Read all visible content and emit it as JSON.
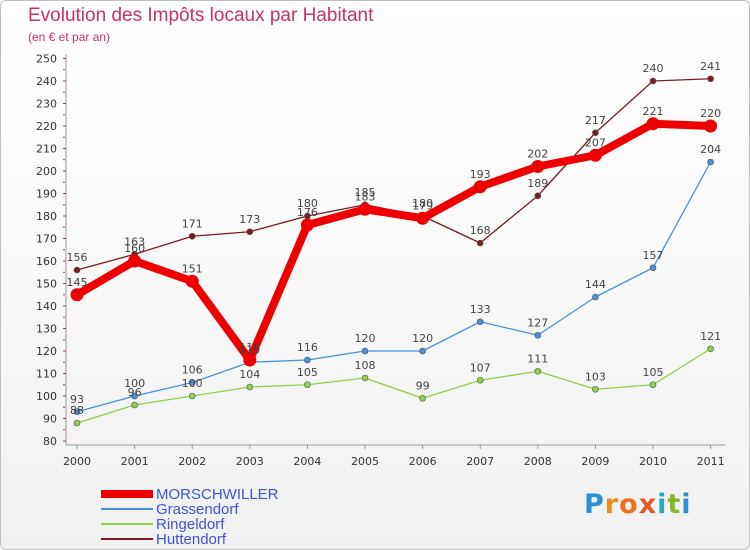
{
  "title": "Evolution des Impôts locaux par Habitant",
  "subtitle": "(en € et par an)",
  "brand": "Proxiti",
  "chart_data": {
    "type": "line",
    "title": "Evolution des Impôts locaux par Habitant",
    "subtitle": "(en € et par an)",
    "xlabel": "",
    "ylabel": "",
    "x": [
      2000,
      2001,
      2002,
      2003,
      2004,
      2005,
      2006,
      2007,
      2008,
      2009,
      2010,
      2011
    ],
    "ylim": [
      80,
      250
    ],
    "yticks": [
      80,
      90,
      100,
      110,
      120,
      130,
      140,
      150,
      160,
      170,
      180,
      190,
      200,
      210,
      220,
      230,
      240,
      250
    ],
    "grid": false,
    "legend_position": "bottom-left",
    "series": [
      {
        "name": "Huttendorf",
        "color": "#7b1c22",
        "values": [
          156,
          163,
          171,
          173,
          180,
          185,
          180,
          168,
          189,
          217,
          240,
          241
        ]
      },
      {
        "name": "Ringeldorf",
        "color": "#8fd14f",
        "values": [
          88,
          96,
          100,
          104,
          105,
          108,
          99,
          107,
          111,
          103,
          105,
          121
        ]
      },
      {
        "name": "Grassendorf",
        "color": "#4a90d9",
        "values": [
          93,
          100,
          106,
          115,
          116,
          120,
          120,
          133,
          127,
          144,
          157,
          204
        ]
      },
      {
        "name": "MORSCHWILLER",
        "color": "#ee0000",
        "values": [
          145,
          160,
          151,
          116,
          176,
          183,
          179,
          193,
          202,
          207,
          221,
          220
        ]
      }
    ],
    "legend_order": [
      "MORSCHWILLER",
      "Grassendorf",
      "Ringeldorf",
      "Huttendorf"
    ]
  }
}
